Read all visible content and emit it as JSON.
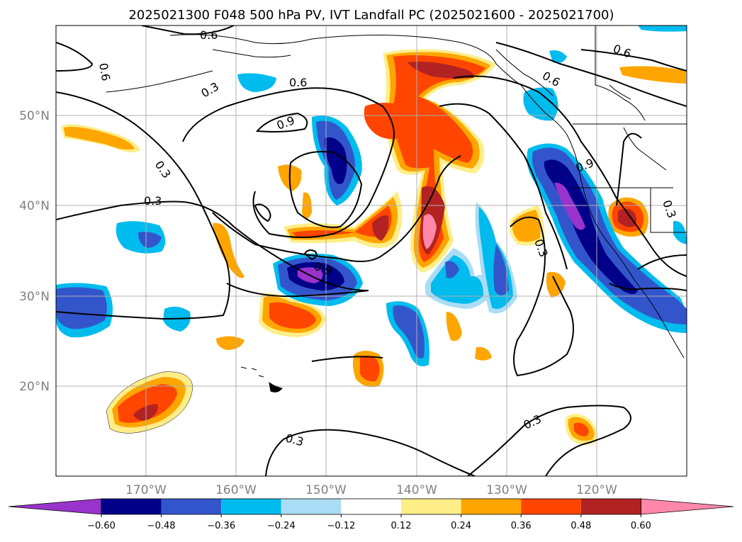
{
  "title": "2025021300 F048 500 hPa PV, IVT Landfall PC (2025021600 - 2025021700)",
  "map": {
    "lon_range": [
      -180,
      -110
    ],
    "lat_range": [
      10,
      60
    ],
    "lon_ticks": [
      "170°W",
      "160°W",
      "150°W",
      "140°W",
      "130°W",
      "120°W"
    ],
    "lat_ticks": [
      "50°N",
      "40°N",
      "30°N",
      "20°N"
    ],
    "grid": true,
    "projection": "PlateCarree"
  },
  "contour_labels": [
    "0.6",
    "0.6",
    "0.6",
    "0.6",
    "0.6",
    "0.3",
    "0.3",
    "0.3",
    "0.3",
    "0.3",
    "0.3",
    "0.9",
    "0.9",
    "0.9",
    "0.3"
  ],
  "colorbar": {
    "ticks": [
      "−0.60",
      "−0.48",
      "−0.36",
      "−0.24",
      "−0.12",
      "0.12",
      "0.24",
      "0.36",
      "0.48",
      "0.60"
    ],
    "colors": [
      "#9933cc",
      "#000088",
      "#3355cc",
      "#00bbee",
      "#aaddf5",
      "#ffffff",
      "#ffee88",
      "#ffa500",
      "#ff4500",
      "#b22222",
      "#ff88aa"
    ],
    "extend": "both"
  },
  "colors": {
    "grid": "#b0b0b0",
    "contour": "#000000",
    "coast": "#000000"
  }
}
